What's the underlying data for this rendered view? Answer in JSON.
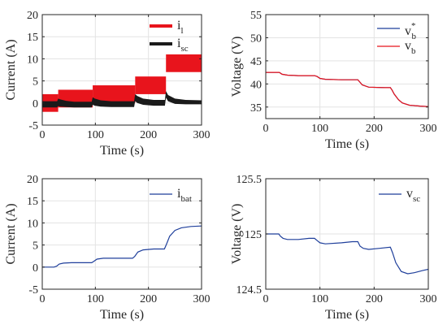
{
  "colors": {
    "red": "#e8141c",
    "black": "#1a1a1a",
    "blue": "#1f3f9b",
    "grid": "#e3e3e3",
    "axis": "#262626"
  },
  "chart_data": [
    {
      "id": "a",
      "type": "line",
      "xlabel": "Time (s)",
      "ylabel": "Current (A)",
      "xlim": [
        0,
        300
      ],
      "ylim": [
        -5,
        20
      ],
      "xticks": [
        "0",
        "100",
        "200",
        "300"
      ],
      "yticks": [
        "-5",
        "0",
        "5",
        "10",
        "15",
        "20"
      ],
      "grid": true,
      "legend_placement": "top-right",
      "series": [
        {
          "name": "i",
          "name_sub": "l",
          "color": "#e8141c",
          "style": "band",
          "segments": [
            {
              "t": [
                0,
                30
              ],
              "low": -2,
              "high": 2
            },
            {
              "t": [
                30,
                95
              ],
              "low": -1,
              "high": 3
            },
            {
              "t": [
                95,
                175
              ],
              "low": 0,
              "high": 4
            },
            {
              "t": [
                175,
                233
              ],
              "low": 2,
              "high": 6
            },
            {
              "t": [
                233,
                300
              ],
              "low": 7,
              "high": 11
            }
          ]
        },
        {
          "name": "i",
          "name_sub": "sc",
          "color": "#1a1a1a",
          "style": "band",
          "x": [
            0,
            28,
            30,
            34,
            45,
            60,
            93,
            95,
            99,
            110,
            130,
            173,
            175,
            179,
            190,
            210,
            231,
            233,
            237,
            250,
            270,
            300
          ],
          "low": [
            -1,
            -1,
            -0.7,
            -0.8,
            -0.9,
            -1,
            -1,
            -0.4,
            -0.6,
            -0.8,
            -0.9,
            -0.9,
            0.4,
            0,
            -0.4,
            -0.6,
            -0.6,
            1.2,
            0.4,
            -0.2,
            -0.3,
            -0.3
          ],
          "high": [
            0.4,
            0.4,
            1.0,
            0.8,
            0.5,
            0.3,
            0.3,
            1.3,
            1.0,
            0.6,
            0.4,
            0.4,
            2.0,
            1.6,
            1.0,
            0.7,
            0.7,
            2.7,
            1.8,
            1.0,
            0.7,
            0.6
          ]
        }
      ]
    },
    {
      "id": "b",
      "type": "line",
      "xlabel": "Time (s)",
      "ylabel": "Voltage (V)",
      "xlim": [
        0,
        300
      ],
      "ylim": [
        32.5,
        55
      ],
      "xticks": [
        "0",
        "100",
        "200",
        "300"
      ],
      "yticks": [
        "35",
        "40",
        "45",
        "50",
        "55"
      ],
      "grid": true,
      "legend_placement": "top-right",
      "series": [
        {
          "name": "v",
          "name_sub": "b",
          "name_sup": "*",
          "color": "#1f3f9b",
          "x": [
            0,
            22,
            25,
            30,
            40,
            60,
            90,
            95,
            100,
            110,
            140,
            170,
            173,
            178,
            190,
            220,
            230,
            233,
            237,
            245,
            252,
            265,
            285,
            300
          ],
          "y": [
            42.5,
            42.5,
            42.5,
            42.1,
            41.9,
            41.8,
            41.8,
            41.6,
            41.2,
            41.0,
            40.9,
            40.9,
            40.5,
            39.8,
            39.3,
            39.2,
            39.2,
            38.7,
            37.8,
            36.6,
            35.9,
            35.4,
            35.2,
            35.1
          ]
        },
        {
          "name": "v",
          "name_sub": "b",
          "color": "#e8141c",
          "x": [
            0,
            22,
            25,
            30,
            40,
            60,
            90,
            95,
            100,
            110,
            140,
            170,
            173,
            178,
            190,
            220,
            230,
            233,
            237,
            245,
            252,
            265,
            285,
            300
          ],
          "y": [
            42.5,
            42.5,
            42.5,
            42.1,
            41.9,
            41.8,
            41.8,
            41.6,
            41.2,
            41.0,
            40.9,
            40.9,
            40.5,
            39.8,
            39.3,
            39.2,
            39.2,
            38.7,
            37.8,
            36.6,
            35.9,
            35.4,
            35.2,
            35.1
          ]
        }
      ]
    },
    {
      "id": "c",
      "type": "line",
      "xlabel": "Time (s)",
      "ylabel": "Current (A)",
      "xlim": [
        0,
        300
      ],
      "ylim": [
        -5,
        20
      ],
      "xticks": [
        "0",
        "100",
        "200",
        "300"
      ],
      "yticks": [
        "-5",
        "0",
        "5",
        "10",
        "15",
        "20"
      ],
      "grid": true,
      "legend_placement": "top-right",
      "series": [
        {
          "name": "i",
          "name_sub": "bat",
          "color": "#1f3f9b",
          "x": [
            0,
            22,
            27,
            32,
            40,
            55,
            80,
            93,
            97,
            103,
            115,
            140,
            170,
            174,
            180,
            190,
            210,
            230,
            234,
            240,
            250,
            262,
            280,
            300
          ],
          "y": [
            0,
            0,
            0.2,
            0.7,
            0.9,
            1.0,
            1.0,
            1.0,
            1.3,
            1.8,
            2.0,
            2.0,
            2.0,
            2.4,
            3.4,
            3.9,
            4.1,
            4.1,
            5.2,
            7.0,
            8.3,
            8.9,
            9.2,
            9.3
          ]
        }
      ]
    },
    {
      "id": "d",
      "type": "line",
      "xlabel": "Time (s)",
      "ylabel": "Voltage (V)",
      "xlim": [
        0,
        300
      ],
      "ylim": [
        124.5,
        125.5
      ],
      "xticks": [
        "0",
        "100",
        "200",
        "300"
      ],
      "yticks": [
        "124.5",
        "125",
        "125.5"
      ],
      "grid": true,
      "legend_placement": "top-right",
      "series": [
        {
          "name": "v",
          "name_sub": "sc",
          "color": "#1f3f9b",
          "x": [
            0,
            20,
            24,
            27,
            32,
            40,
            60,
            80,
            90,
            95,
            100,
            110,
            140,
            160,
            170,
            174,
            180,
            190,
            210,
            230,
            234,
            240,
            250,
            262,
            275,
            290,
            300
          ],
          "y": [
            125.0,
            125.0,
            125.0,
            124.98,
            124.96,
            124.95,
            124.95,
            124.96,
            124.96,
            124.94,
            124.92,
            124.91,
            124.92,
            124.93,
            124.93,
            124.89,
            124.87,
            124.86,
            124.87,
            124.88,
            124.83,
            124.74,
            124.66,
            124.64,
            124.65,
            124.67,
            124.68
          ]
        }
      ]
    }
  ]
}
